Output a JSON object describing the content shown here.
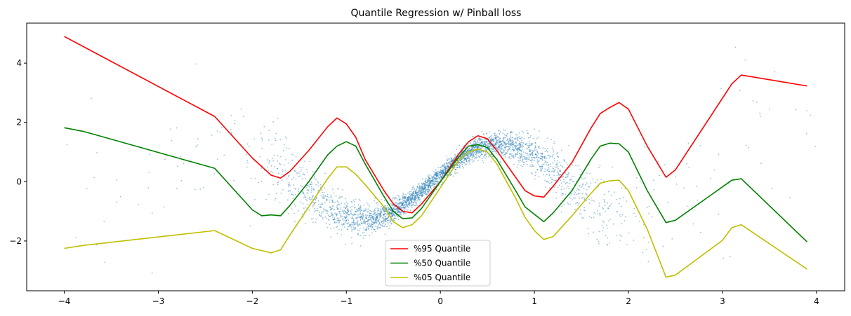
{
  "chart_data": {
    "type": "line",
    "title": "Quantile Regression w/ Pinball loss",
    "xlabel": "",
    "ylabel": "",
    "xlim": [
      -4.4,
      4.3
    ],
    "ylim": [
      -3.68,
      5.35
    ],
    "grid": false,
    "legend_position": "lower-center",
    "x_ticks": [
      -4,
      -3,
      -2,
      -1,
      0,
      1,
      2,
      3,
      4
    ],
    "x_tick_labels": [
      "−4",
      "−3",
      "−2",
      "−1",
      "0",
      "1",
      "2",
      "3",
      "4"
    ],
    "y_ticks": [
      -2,
      0,
      2,
      4
    ],
    "y_tick_labels": [
      "−2",
      "0",
      "2",
      "4"
    ],
    "scatter_color": "#1f77b4",
    "series": [
      {
        "name": "%95 Quantile",
        "color": "#ff0000",
        "points": [
          [
            -4.0,
            4.9
          ],
          [
            -2.4,
            2.2
          ],
          [
            -2.0,
            0.8
          ],
          [
            -1.8,
            0.22
          ],
          [
            -1.7,
            0.12
          ],
          [
            -1.6,
            0.35
          ],
          [
            -1.4,
            1.05
          ],
          [
            -1.2,
            1.85
          ],
          [
            -1.1,
            2.15
          ],
          [
            -1.0,
            1.95
          ],
          [
            -0.9,
            1.5
          ],
          [
            -0.8,
            0.75
          ],
          [
            -0.6,
            -0.3
          ],
          [
            -0.5,
            -0.75
          ],
          [
            -0.4,
            -1.0
          ],
          [
            -0.3,
            -1.05
          ],
          [
            -0.2,
            -0.75
          ],
          [
            0.0,
            0.0
          ],
          [
            0.2,
            0.95
          ],
          [
            0.3,
            1.35
          ],
          [
            0.4,
            1.55
          ],
          [
            0.5,
            1.45
          ],
          [
            0.6,
            1.05
          ],
          [
            0.8,
            0.15
          ],
          [
            0.9,
            -0.3
          ],
          [
            1.0,
            -0.48
          ],
          [
            1.1,
            -0.52
          ],
          [
            1.2,
            -0.15
          ],
          [
            1.4,
            0.65
          ],
          [
            1.6,
            1.8
          ],
          [
            1.7,
            2.3
          ],
          [
            1.8,
            2.5
          ],
          [
            1.9,
            2.67
          ],
          [
            2.0,
            2.45
          ],
          [
            2.2,
            1.2
          ],
          [
            2.4,
            0.15
          ],
          [
            2.5,
            0.4
          ],
          [
            3.1,
            3.3
          ],
          [
            3.2,
            3.6
          ],
          [
            3.9,
            3.23
          ]
        ]
      },
      {
        "name": "%50 Quantile",
        "color": "#008000",
        "points": [
          [
            -4.0,
            1.82
          ],
          [
            -3.8,
            1.7
          ],
          [
            -2.4,
            0.45
          ],
          [
            -2.0,
            -0.95
          ],
          [
            -1.9,
            -1.15
          ],
          [
            -1.8,
            -1.12
          ],
          [
            -1.7,
            -1.15
          ],
          [
            -1.6,
            -0.8
          ],
          [
            -1.4,
            0.0
          ],
          [
            -1.2,
            0.9
          ],
          [
            -1.1,
            1.2
          ],
          [
            -1.0,
            1.35
          ],
          [
            -0.9,
            1.2
          ],
          [
            -0.8,
            0.6
          ],
          [
            -0.6,
            -0.5
          ],
          [
            -0.5,
            -1.0
          ],
          [
            -0.4,
            -1.25
          ],
          [
            -0.3,
            -1.22
          ],
          [
            -0.2,
            -0.9
          ],
          [
            0.0,
            0.0
          ],
          [
            0.2,
            0.85
          ],
          [
            0.3,
            1.2
          ],
          [
            0.4,
            1.25
          ],
          [
            0.5,
            1.15
          ],
          [
            0.6,
            0.75
          ],
          [
            0.8,
            -0.3
          ],
          [
            0.9,
            -0.85
          ],
          [
            1.0,
            -1.1
          ],
          [
            1.1,
            -1.35
          ],
          [
            1.2,
            -1.05
          ],
          [
            1.4,
            -0.3
          ],
          [
            1.6,
            0.75
          ],
          [
            1.7,
            1.2
          ],
          [
            1.8,
            1.3
          ],
          [
            1.9,
            1.28
          ],
          [
            2.0,
            1.0
          ],
          [
            2.2,
            -0.3
          ],
          [
            2.4,
            -1.38
          ],
          [
            2.5,
            -1.3
          ],
          [
            3.1,
            0.05
          ],
          [
            3.2,
            0.1
          ],
          [
            3.9,
            -2.03
          ]
        ]
      },
      {
        "name": "%05 Quantile",
        "color": "#bfbf00",
        "points": [
          [
            -4.0,
            -2.25
          ],
          [
            -3.8,
            -2.15
          ],
          [
            -2.4,
            -1.65
          ],
          [
            -2.0,
            -2.25
          ],
          [
            -1.8,
            -2.4
          ],
          [
            -1.7,
            -2.3
          ],
          [
            -1.6,
            -1.8
          ],
          [
            -1.4,
            -0.85
          ],
          [
            -1.2,
            0.1
          ],
          [
            -1.1,
            0.5
          ],
          [
            -1.0,
            0.5
          ],
          [
            -0.9,
            0.25
          ],
          [
            -0.8,
            -0.1
          ],
          [
            -0.6,
            -0.85
          ],
          [
            -0.5,
            -1.35
          ],
          [
            -0.4,
            -1.55
          ],
          [
            -0.3,
            -1.45
          ],
          [
            -0.2,
            -1.15
          ],
          [
            0.0,
            -0.2
          ],
          [
            0.2,
            0.75
          ],
          [
            0.3,
            1.0
          ],
          [
            0.4,
            1.1
          ],
          [
            0.5,
            1.0
          ],
          [
            0.6,
            0.6
          ],
          [
            0.8,
            -0.55
          ],
          [
            0.9,
            -1.2
          ],
          [
            1.0,
            -1.65
          ],
          [
            1.1,
            -1.95
          ],
          [
            1.2,
            -1.85
          ],
          [
            1.4,
            -1.15
          ],
          [
            1.6,
            -0.4
          ],
          [
            1.7,
            -0.05
          ],
          [
            1.8,
            0.03
          ],
          [
            1.9,
            0.05
          ],
          [
            2.0,
            -0.3
          ],
          [
            2.2,
            -1.6
          ],
          [
            2.4,
            -3.22
          ],
          [
            2.5,
            -3.15
          ],
          [
            3.0,
            -1.98
          ],
          [
            3.1,
            -1.55
          ],
          [
            3.2,
            -1.45
          ],
          [
            3.9,
            -2.95
          ]
        ]
      }
    ]
  }
}
